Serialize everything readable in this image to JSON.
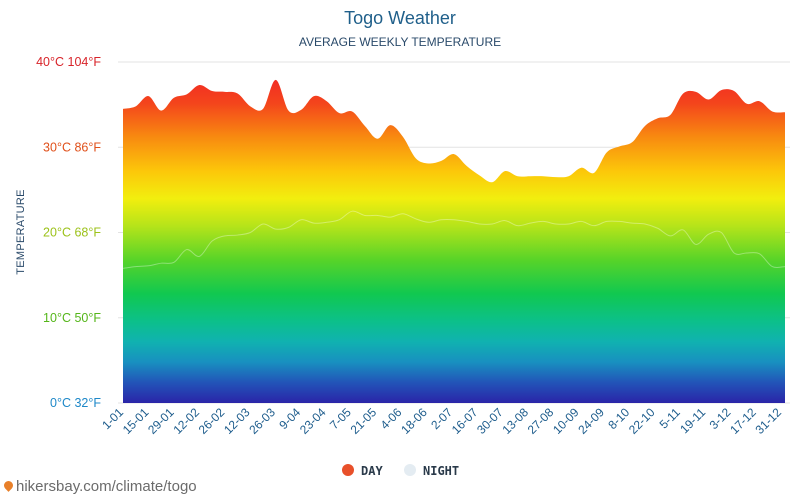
{
  "chart_data": {
    "type": "area",
    "title": "Togo Weather",
    "subtitle": "AVERAGE WEEKLY TEMPERATURE",
    "ylabel": "TEMPERATURE",
    "ylim": [
      0,
      40
    ],
    "ytick_labels": [
      {
        "value": 0,
        "label": "0°C 32°F",
        "color": "#1e88c8"
      },
      {
        "value": 10,
        "label": "10°C 50°F",
        "color": "#55b61a"
      },
      {
        "value": 20,
        "label": "20°C 68°F",
        "color": "#9cc21a"
      },
      {
        "value": 30,
        "label": "30°C 86°F",
        "color": "#e0501a"
      },
      {
        "value": 40,
        "label": "40°C 104°F",
        "color": "#d8242a"
      }
    ],
    "x_tick_labels": [
      "1-01",
      "15-01",
      "29-01",
      "12-02",
      "26-02",
      "12-03",
      "26-03",
      "9-04",
      "23-04",
      "7-05",
      "21-05",
      "4-06",
      "18-06",
      "2-07",
      "16-07",
      "30-07",
      "13-08",
      "27-08",
      "10-09",
      "24-09",
      "8-10",
      "22-10",
      "5-11",
      "19-11",
      "3-12",
      "17-12",
      "31-12"
    ],
    "grid": true,
    "legend_position": "bottom",
    "series": [
      {
        "name": "DAY",
        "color": "#e8502a",
        "values": [
          34.5,
          34.8,
          36.0,
          34.3,
          35.8,
          36.2,
          37.3,
          36.6,
          36.5,
          36.3,
          34.8,
          34.5,
          37.9,
          34.3,
          34.4,
          36.0,
          35.4,
          34.0,
          34.2,
          32.5,
          31.0,
          32.6,
          31.2,
          28.7,
          28.1,
          28.4,
          29.2,
          27.8,
          26.7,
          25.9,
          27.2,
          26.6,
          26.6,
          26.6,
          26.5,
          26.6,
          27.6,
          27.0,
          29.4,
          30.1,
          30.6,
          32.5,
          33.4,
          33.8,
          36.3,
          36.5,
          35.6,
          36.7,
          36.6,
          35.1,
          35.4,
          34.2,
          34.1
        ]
      },
      {
        "name": "NIGHT",
        "color": "#e4ecf2",
        "values": [
          15.8,
          16.0,
          16.1,
          16.4,
          16.5,
          18.0,
          17.2,
          19.0,
          19.6,
          19.7,
          20.0,
          21.0,
          20.4,
          20.6,
          21.5,
          21.1,
          21.2,
          21.5,
          22.5,
          22.0,
          22.0,
          21.8,
          22.2,
          21.6,
          21.2,
          21.5,
          21.5,
          21.3,
          21.0,
          21.0,
          21.4,
          20.8,
          21.1,
          21.3,
          21.0,
          21.0,
          21.3,
          20.8,
          21.3,
          21.3,
          21.1,
          21.0,
          20.5,
          19.6,
          20.3,
          18.6,
          19.8,
          20.0,
          17.6,
          17.6,
          17.5,
          16.0,
          16.0
        ]
      }
    ]
  }
}
